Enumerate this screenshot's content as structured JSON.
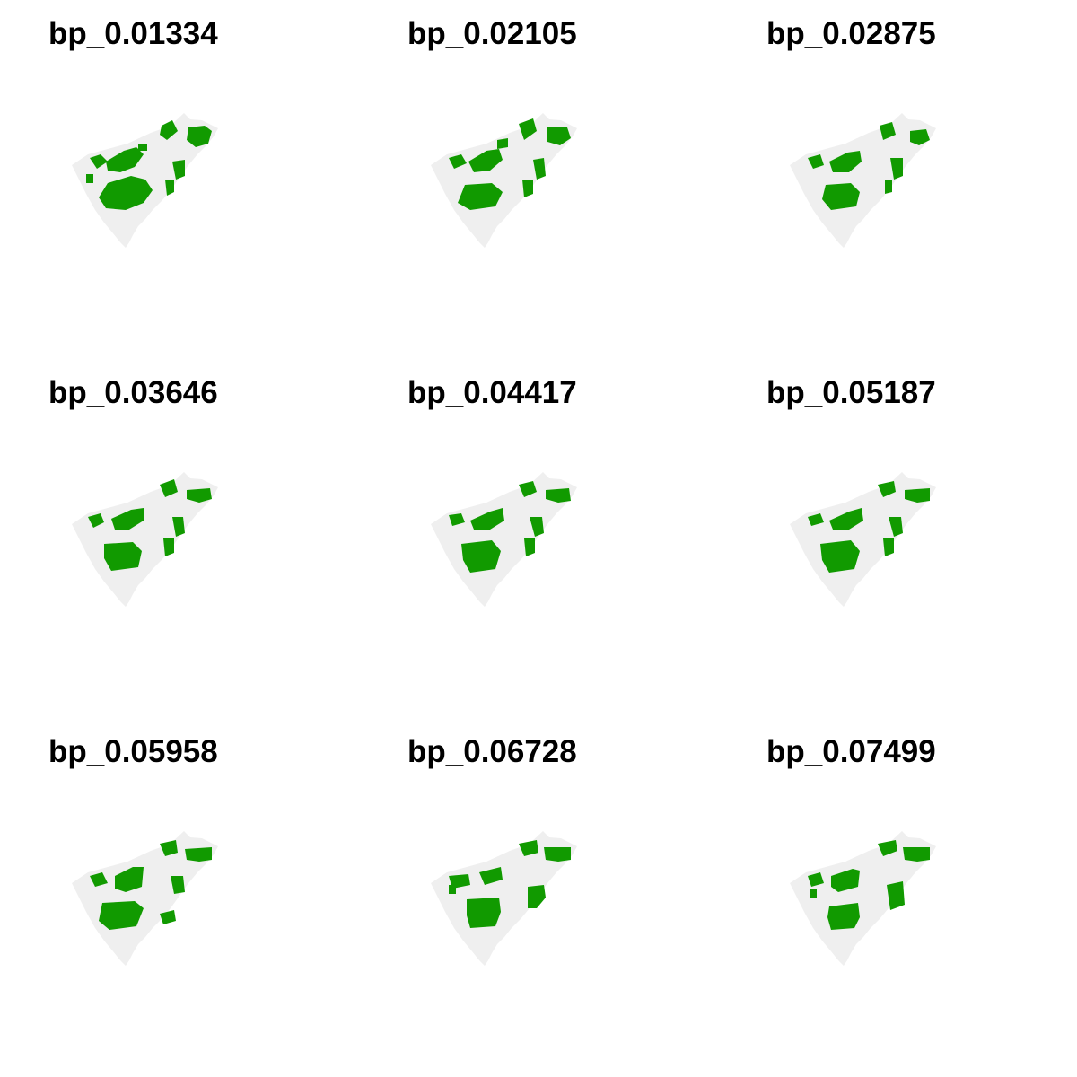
{
  "colors": {
    "background": "#ffffff",
    "region": "#efefef",
    "patch": "#119a00",
    "title": "#000000"
  },
  "panels": [
    {
      "title": "bp_0.01334"
    },
    {
      "title": "bp_0.02105"
    },
    {
      "title": "bp_0.02875"
    },
    {
      "title": "bp_0.03646"
    },
    {
      "title": "bp_0.04417"
    },
    {
      "title": "bp_0.05187"
    },
    {
      "title": "bp_0.05958"
    },
    {
      "title": "bp_0.06728"
    },
    {
      "title": "bp_0.07499"
    }
  ]
}
